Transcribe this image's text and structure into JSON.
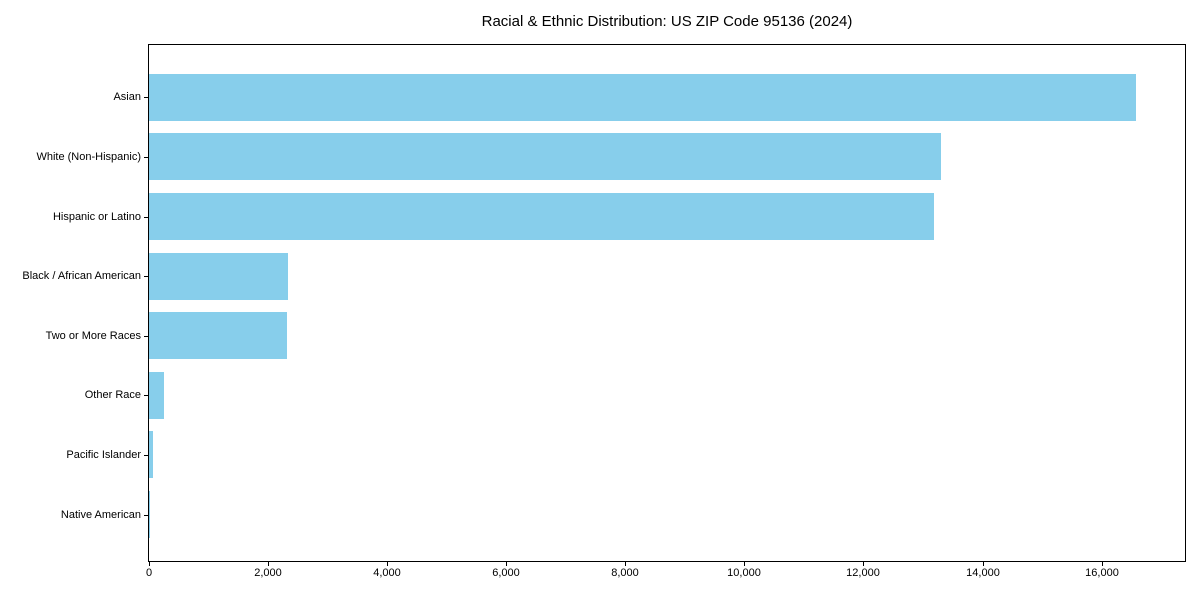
{
  "chart_data": {
    "type": "bar",
    "orientation": "horizontal",
    "title": "Racial & Ethnic Distribution: US ZIP Code 95136 (2024)",
    "categories": [
      "Asian",
      "White (Non-Hispanic)",
      "Hispanic or Latino",
      "Black / African American",
      "Two or More Races",
      "Other Race",
      "Pacific Islander",
      "Native American"
    ],
    "values": [
      16580,
      13310,
      13180,
      2330,
      2310,
      250,
      70,
      15
    ],
    "bar_color": "#87CEEB",
    "xlabel": "",
    "ylabel": "",
    "xlim": [
      0,
      17400
    ],
    "xticks": [
      0,
      2000,
      4000,
      6000,
      8000,
      10000,
      12000,
      14000,
      16000
    ],
    "xtick_labels": [
      "0",
      "2,000",
      "4,000",
      "6,000",
      "8,000",
      "10,000",
      "12,000",
      "14,000",
      "16,000"
    ],
    "grid": false,
    "legend": null,
    "plot_border": true,
    "background_color": "#ffffff"
  }
}
